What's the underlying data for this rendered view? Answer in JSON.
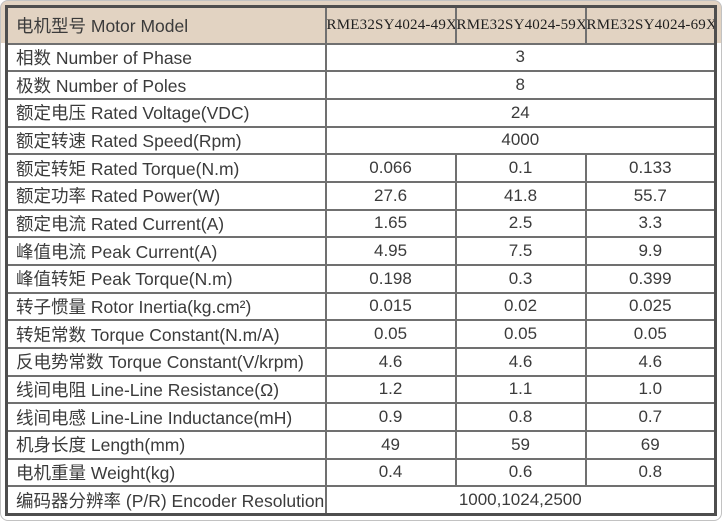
{
  "table": {
    "header": {
      "label": "电机型号 Motor Model",
      "models": [
        "RME32SY4024-49X",
        "RME32SY4024-59X",
        "RME32SY4024-69X"
      ]
    },
    "rows": [
      {
        "label": "相数 Number of Phase",
        "span": "3"
      },
      {
        "label": "极数 Number of Poles",
        "span": "8"
      },
      {
        "label": "额定电压 Rated Voltage(VDC)",
        "span": "24"
      },
      {
        "label": "额定转速 Rated Speed(Rpm)",
        "span": "4000"
      },
      {
        "label": "额定转矩 Rated Torque(N.m)",
        "values": [
          "0.066",
          "0.1",
          "0.133"
        ]
      },
      {
        "label": "额定功率 Rated Power(W)",
        "values": [
          "27.6",
          "41.8",
          "55.7"
        ]
      },
      {
        "label": "额定电流 Rated Current(A)",
        "values": [
          "1.65",
          "2.5",
          "3.3"
        ]
      },
      {
        "label": "峰值电流 Peak Current(A)",
        "values": [
          "4.95",
          "7.5",
          "9.9"
        ]
      },
      {
        "label": "峰值转矩 Peak Torque(N.m)",
        "values": [
          "0.198",
          "0.3",
          "0.399"
        ]
      },
      {
        "label": "转子惯量 Rotor Inertia(kg.cm²)",
        "values": [
          "0.015",
          "0.02",
          "0.025"
        ]
      },
      {
        "label": "转矩常数 Torque Constant(N.m/A)",
        "values": [
          "0.05",
          "0.05",
          "0.05"
        ]
      },
      {
        "label": "反电势常数 Torque Constant(V/krpm)",
        "values": [
          "4.6",
          "4.6",
          "4.6"
        ]
      },
      {
        "label": "线间电阻 Line-Line Resistance(Ω)",
        "values": [
          "1.2",
          "1.1",
          "1.0"
        ]
      },
      {
        "label": "线间电感 Line-Line Inductance(mH)",
        "values": [
          "0.9",
          "0.8",
          "0.7"
        ]
      },
      {
        "label": "机身长度 Length(mm)",
        "values": [
          "49",
          "59",
          "69"
        ]
      },
      {
        "label": "电机重量 Weight(kg)",
        "values": [
          "0.4",
          "0.6",
          "0.8"
        ]
      },
      {
        "label": "编码器分辨率 (P/R) Encoder Resolution",
        "span": "1000,1024,2500"
      }
    ],
    "colors": {
      "header_bg": "#e2d3c2",
      "inner_border": "#707070",
      "outer_border": "#4e4e4e",
      "text": "#3b3b3b"
    }
  }
}
